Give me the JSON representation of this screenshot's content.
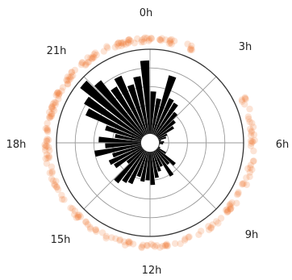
{
  "chart_data": {
    "type": "bar",
    "polar": true,
    "title": "",
    "angle_labels": [
      "0h",
      "3h",
      "6h",
      "9h",
      "12h",
      "15h",
      "18h",
      "21h"
    ],
    "grid": true,
    "r_max": 100,
    "inner_hole": 10,
    "ring_levels": [
      20,
      40,
      60,
      80
    ],
    "bin_count": 48,
    "bar_values": [
      55,
      48,
      75,
      52,
      50,
      42,
      35,
      30,
      20,
      18,
      12,
      15,
      14,
      10,
      8,
      12,
      20,
      35,
      30,
      42,
      28,
      32,
      38,
      45,
      40,
      42,
      38,
      48,
      50,
      55,
      32,
      45,
      48,
      42,
      60,
      48,
      55,
      38,
      50,
      75,
      82,
      95,
      85,
      70,
      78,
      65,
      72,
      88
    ],
    "outer_points": {
      "count": 260,
      "angle_range_hours": [
        4.3,
        1.7
      ],
      "radius": 128,
      "color": "#ee7a30"
    },
    "colors": {
      "bars": "#000000",
      "grid": "#9a9a9a",
      "frame": "#333333",
      "points": "#ee7a30"
    }
  }
}
